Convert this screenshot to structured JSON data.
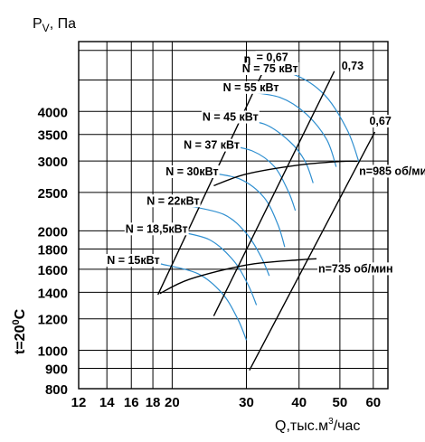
{
  "chart_data": {
    "type": "line",
    "x_axis_title_main": "Q,тыс.м",
    "x_axis_title_sup": "3",
    "x_axis_title_tail": "/час",
    "y_axis_title_main": "P",
    "y_axis_title_sub": "V",
    "y_axis_title_tail": ", Па",
    "temperature_main": "t=20",
    "temperature_sup": "0",
    "temperature_tail": "C",
    "x_scale": "log",
    "y_scale": "log",
    "xlim": [
      12,
      65
    ],
    "ylim": [
      800,
      6000
    ],
    "x_ticks": [
      12,
      14,
      16,
      18,
      20,
      30,
      40,
      50,
      60
    ],
    "x_tick_labels": [
      "12",
      "14",
      "16",
      "18",
      "20",
      "30",
      "40",
      "50",
      "60"
    ],
    "y_ticks": [
      800,
      900,
      1000,
      1200,
      1400,
      1600,
      1800,
      2000,
      2500,
      3000,
      3500,
      4000
    ],
    "y_tick_labels": [
      "800",
      "900",
      "1000",
      "1200",
      "1400",
      "1600",
      "1800",
      "2000",
      "2500",
      "3000",
      "3500",
      "4000"
    ],
    "y_extra_gridlines": [
      4800,
      5700
    ],
    "speed_curves": [
      {
        "label": "n=985 об/мин",
        "points": [
          [
            25.1,
            2600
          ],
          [
            30,
            2780
          ],
          [
            40,
            2930
          ],
          [
            50,
            2990
          ],
          [
            55,
            2995
          ]
        ]
      },
      {
        "label": "n=735 об/мин",
        "points": [
          [
            18.7,
            1390
          ],
          [
            22,
            1510
          ],
          [
            30,
            1640
          ],
          [
            40,
            1690
          ],
          [
            44,
            1700
          ]
        ]
      }
    ],
    "efficiency_lines": [
      {
        "label": "η",
        "value_label": "= 0,67",
        "points": [
          [
            18.5,
            1380
          ],
          [
            33.3,
            5200
          ]
        ]
      },
      {
        "label": "",
        "value_label": "0,73",
        "points": [
          [
            25.1,
            1220
          ],
          [
            48.5,
            5050
          ]
        ]
      },
      {
        "label": "",
        "value_label": "0,67",
        "points": [
          [
            30.5,
            890
          ],
          [
            60.5,
            3550
          ]
        ]
      }
    ],
    "power_curves": [
      {
        "label": "N = 75 кВт",
        "label_at": [
          29.3,
          5020
        ],
        "points": [
          [
            32,
            5100
          ],
          [
            39,
            4950
          ],
          [
            46,
            4400
          ],
          [
            52,
            3600
          ],
          [
            55.5,
            2980
          ]
        ]
      },
      {
        "label": "N = 55 кВт",
        "label_at": [
          26.4,
          4500
        ],
        "points": [
          [
            30,
            4480
          ],
          [
            36,
            4340
          ],
          [
            41.5,
            3950
          ],
          [
            46.5,
            3400
          ],
          [
            49,
            2900
          ]
        ]
      },
      {
        "label": "N = 45 кВт",
        "label_at": [
          23.6,
          3790
        ],
        "points": [
          [
            27.5,
            3800
          ],
          [
            33,
            3720
          ],
          [
            38,
            3360
          ],
          [
            41.3,
            3000
          ],
          [
            43.2,
            2640
          ]
        ]
      },
      {
        "label": "N = 37 кВт",
        "label_at": [
          21.3,
          3220
        ],
        "points": [
          [
            26.3,
            3300
          ],
          [
            31,
            3180
          ],
          [
            35,
            2900
          ],
          [
            37.8,
            2500
          ],
          [
            39.2,
            2250
          ]
        ]
      },
      {
        "label": "N = 30кВт",
        "label_at": [
          19.3,
          2760
        ],
        "points": [
          [
            24.5,
            2800
          ],
          [
            29,
            2700
          ],
          [
            33,
            2430
          ],
          [
            35.6,
            2080
          ],
          [
            37,
            1820
          ]
        ]
      },
      {
        "label": "N = 22кВт",
        "label_at": [
          17.4,
          2330
        ],
        "points": [
          [
            21.5,
            2320
          ],
          [
            26.5,
            2200
          ],
          [
            30,
            1970
          ],
          [
            32.5,
            1720
          ],
          [
            34,
            1540
          ]
        ]
      },
      {
        "label": "N = 18,5кВт",
        "label_at": [
          15.5,
          1980
        ],
        "points": [
          [
            20.2,
            2000
          ],
          [
            24.5,
            1900
          ],
          [
            28,
            1680
          ],
          [
            30.3,
            1460
          ],
          [
            31.7,
            1300
          ]
        ]
      },
      {
        "label": "N = 15кВт",
        "label_at": [
          14.0,
          1650
        ],
        "points": [
          [
            18.8,
            1650
          ],
          [
            23,
            1560
          ],
          [
            26.3,
            1390
          ],
          [
            28.6,
            1200
          ],
          [
            30,
            1060
          ]
        ]
      }
    ]
  }
}
